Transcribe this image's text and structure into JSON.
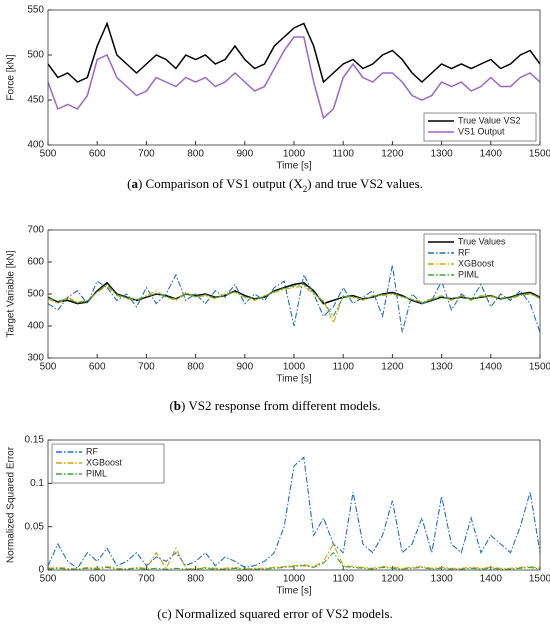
{
  "chart_data": [
    {
      "type": "line",
      "y_label": "Force [kN]",
      "x_label": "Time [s]",
      "caption": [
        {
          "text": "("
        },
        {
          "text": "a",
          "style": "bold"
        },
        {
          "text": ") Comparison of VS1 output (X"
        },
        {
          "text": "2",
          "style": "sub"
        },
        {
          "text": ") and true VS2 values."
        }
      ],
      "x": [
        500,
        520,
        540,
        560,
        580,
        600,
        620,
        640,
        660,
        680,
        700,
        720,
        740,
        760,
        780,
        800,
        820,
        840,
        860,
        880,
        900,
        920,
        940,
        960,
        980,
        1000,
        1020,
        1040,
        1060,
        1080,
        1100,
        1120,
        1140,
        1160,
        1180,
        1200,
        1220,
        1240,
        1260,
        1280,
        1300,
        1320,
        1340,
        1360,
        1380,
        1400,
        1420,
        1440,
        1460,
        1480,
        1500
      ],
      "xlim": [
        500,
        1500
      ],
      "xticks": [
        500,
        600,
        700,
        800,
        900,
        1000,
        1100,
        1200,
        1300,
        1400,
        1500
      ],
      "ylim": [
        400,
        550
      ],
      "yticks": [
        400,
        450,
        500,
        550
      ],
      "legend": "lower right",
      "series": [
        {
          "name": "True Value VS2",
          "color": "#000000",
          "line_style": "solid",
          "values": [
            490,
            475,
            480,
            470,
            475,
            510,
            535,
            500,
            490,
            480,
            490,
            500,
            495,
            485,
            500,
            495,
            500,
            490,
            495,
            510,
            495,
            485,
            490,
            510,
            520,
            530,
            535,
            510,
            470,
            480,
            490,
            495,
            485,
            490,
            500,
            505,
            495,
            480,
            470,
            480,
            490,
            485,
            490,
            485,
            490,
            495,
            485,
            490,
            500,
            505,
            490
          ]
        },
        {
          "name": "VS1 Output",
          "color": "#9966cc",
          "line_style": "solid",
          "values": [
            470,
            440,
            445,
            440,
            455,
            495,
            500,
            475,
            465,
            455,
            460,
            475,
            470,
            465,
            475,
            470,
            475,
            465,
            470,
            480,
            470,
            460,
            465,
            485,
            505,
            520,
            520,
            470,
            430,
            440,
            475,
            490,
            475,
            470,
            480,
            480,
            470,
            455,
            450,
            455,
            470,
            465,
            470,
            460,
            465,
            475,
            465,
            465,
            475,
            480,
            470
          ]
        }
      ]
    },
    {
      "type": "line",
      "y_label": "Target Variable [kN]",
      "x_label": "Time [s]",
      "caption": [
        {
          "text": "("
        },
        {
          "text": "b",
          "style": "bold"
        },
        {
          "text": ") VS2 response from different models."
        }
      ],
      "x": [
        500,
        520,
        540,
        560,
        580,
        600,
        620,
        640,
        660,
        680,
        700,
        720,
        740,
        760,
        780,
        800,
        820,
        840,
        860,
        880,
        900,
        920,
        940,
        960,
        980,
        1000,
        1020,
        1040,
        1060,
        1080,
        1100,
        1120,
        1140,
        1160,
        1180,
        1200,
        1220,
        1240,
        1260,
        1280,
        1300,
        1320,
        1340,
        1360,
        1380,
        1400,
        1420,
        1440,
        1460,
        1480,
        1500
      ],
      "xlim": [
        500,
        1500
      ],
      "xticks": [
        500,
        600,
        700,
        800,
        900,
        1000,
        1100,
        1200,
        1300,
        1400,
        1500
      ],
      "ylim": [
        300,
        700
      ],
      "yticks": [
        300,
        400,
        500,
        600,
        700
      ],
      "legend": "upper right",
      "series": [
        {
          "name": "True Values",
          "color": "#000000",
          "line_style": "solid",
          "values": [
            490,
            475,
            480,
            470,
            475,
            510,
            535,
            500,
            490,
            480,
            490,
            500,
            495,
            485,
            500,
            495,
            500,
            490,
            495,
            510,
            495,
            485,
            490,
            510,
            520,
            530,
            535,
            510,
            470,
            480,
            490,
            495,
            485,
            490,
            500,
            505,
            495,
            480,
            470,
            480,
            490,
            485,
            490,
            485,
            490,
            495,
            485,
            490,
            500,
            505,
            490
          ]
        },
        {
          "name": "RF",
          "color": "#1f6fc5",
          "line_style": "dash-dot",
          "values": [
            470,
            450,
            490,
            510,
            470,
            540,
            520,
            480,
            500,
            460,
            520,
            470,
            500,
            560,
            480,
            500,
            470,
            510,
            490,
            530,
            470,
            500,
            480,
            520,
            540,
            400,
            560,
            500,
            430,
            460,
            520,
            470,
            490,
            510,
            430,
            590,
            380,
            500,
            470,
            480,
            540,
            450,
            500,
            480,
            530,
            460,
            500,
            480,
            510,
            470,
            380
          ]
        },
        {
          "name": "XGBoost",
          "color": "#d9a000",
          "line_style": "dash-dot",
          "values": [
            485,
            470,
            490,
            475,
            480,
            505,
            525,
            495,
            485,
            480,
            495,
            510,
            490,
            480,
            505,
            490,
            495,
            485,
            500,
            505,
            490,
            480,
            495,
            505,
            515,
            520,
            525,
            500,
            480,
            410,
            495,
            490,
            480,
            495,
            495,
            500,
            490,
            485,
            475,
            485,
            495,
            480,
            495,
            480,
            495,
            490,
            490,
            485,
            495,
            500,
            485
          ]
        },
        {
          "name": "PIML",
          "color": "#3aa63a",
          "line_style": "dash-dot",
          "values": [
            488,
            478,
            485,
            472,
            478,
            508,
            530,
            498,
            488,
            482,
            492,
            502,
            492,
            484,
            500,
            492,
            498,
            488,
            496,
            508,
            492,
            484,
            492,
            508,
            518,
            525,
            530,
            505,
            475,
            430,
            492,
            492,
            484,
            492,
            498,
            502,
            492,
            482,
            472,
            482,
            492,
            484,
            492,
            484,
            492,
            494,
            486,
            488,
            498,
            502,
            488
          ]
        }
      ]
    },
    {
      "type": "line",
      "y_label": "Normalized Squared Error",
      "x_label": "Time [s]",
      "caption": [
        {
          "text": "("
        },
        {
          "text": "c"
        },
        {
          "text": ") Normalized squared error of VS2 models."
        }
      ],
      "x": [
        500,
        520,
        540,
        560,
        580,
        600,
        620,
        640,
        660,
        680,
        700,
        720,
        740,
        760,
        780,
        800,
        820,
        840,
        860,
        880,
        900,
        920,
        940,
        960,
        980,
        1000,
        1020,
        1040,
        1060,
        1080,
        1100,
        1120,
        1140,
        1160,
        1180,
        1200,
        1220,
        1240,
        1260,
        1280,
        1300,
        1320,
        1340,
        1360,
        1380,
        1400,
        1420,
        1440,
        1460,
        1480,
        1500
      ],
      "xlim": [
        500,
        1500
      ],
      "xticks": [
        500,
        600,
        700,
        800,
        900,
        1000,
        1100,
        1200,
        1300,
        1400,
        1500
      ],
      "ylim": [
        0,
        0.15
      ],
      "yticks": [
        0,
        0.05,
        0.1,
        0.15
      ],
      "legend": "upper left",
      "series": [
        {
          "name": "RF",
          "color": "#1f6fc5",
          "line_style": "dash-dot",
          "values": [
            0.005,
            0.03,
            0.01,
            0.002,
            0.02,
            0.01,
            0.025,
            0.005,
            0.01,
            0.02,
            0.005,
            0.015,
            0.01,
            0.02,
            0.005,
            0.01,
            0.02,
            0.005,
            0.015,
            0.01,
            0.003,
            0.005,
            0.01,
            0.02,
            0.05,
            0.12,
            0.13,
            0.04,
            0.06,
            0.03,
            0.02,
            0.09,
            0.03,
            0.02,
            0.04,
            0.08,
            0.02,
            0.03,
            0.06,
            0.02,
            0.085,
            0.03,
            0.02,
            0.06,
            0.02,
            0.04,
            0.03,
            0.02,
            0.05,
            0.09,
            0.02
          ]
        },
        {
          "name": "XGBoost",
          "color": "#d9a000",
          "line_style": "dash-dot",
          "values": [
            0.002,
            0.003,
            0.002,
            0.001,
            0.003,
            0.002,
            0.004,
            0.002,
            0.001,
            0.003,
            0.002,
            0.02,
            0.002,
            0.025,
            0.002,
            0.001,
            0.003,
            0.002,
            0.002,
            0.003,
            0.001,
            0.002,
            0.002,
            0.003,
            0.004,
            0.005,
            0.006,
            0.004,
            0.01,
            0.03,
            0.005,
            0.004,
            0.003,
            0.002,
            0.004,
            0.003,
            0.002,
            0.003,
            0.004,
            0.002,
            0.003,
            0.002,
            0.002,
            0.003,
            0.002,
            0.003,
            0.002,
            0.002,
            0.003,
            0.004,
            0.002
          ]
        },
        {
          "name": "PIML",
          "color": "#3aa63a",
          "line_style": "dash-dot",
          "values": [
            0.001,
            0.002,
            0.001,
            0.001,
            0.002,
            0.001,
            0.003,
            0.001,
            0.001,
            0.002,
            0.001,
            0.002,
            0.001,
            0.002,
            0.001,
            0.001,
            0.002,
            0.001,
            0.001,
            0.002,
            0.001,
            0.001,
            0.001,
            0.002,
            0.003,
            0.004,
            0.005,
            0.003,
            0.008,
            0.02,
            0.004,
            0.003,
            0.002,
            0.001,
            0.003,
            0.002,
            0.001,
            0.002,
            0.003,
            0.001,
            0.002,
            0.001,
            0.001,
            0.002,
            0.001,
            0.002,
            0.001,
            0.001,
            0.002,
            0.003,
            0.001
          ]
        }
      ]
    }
  ]
}
